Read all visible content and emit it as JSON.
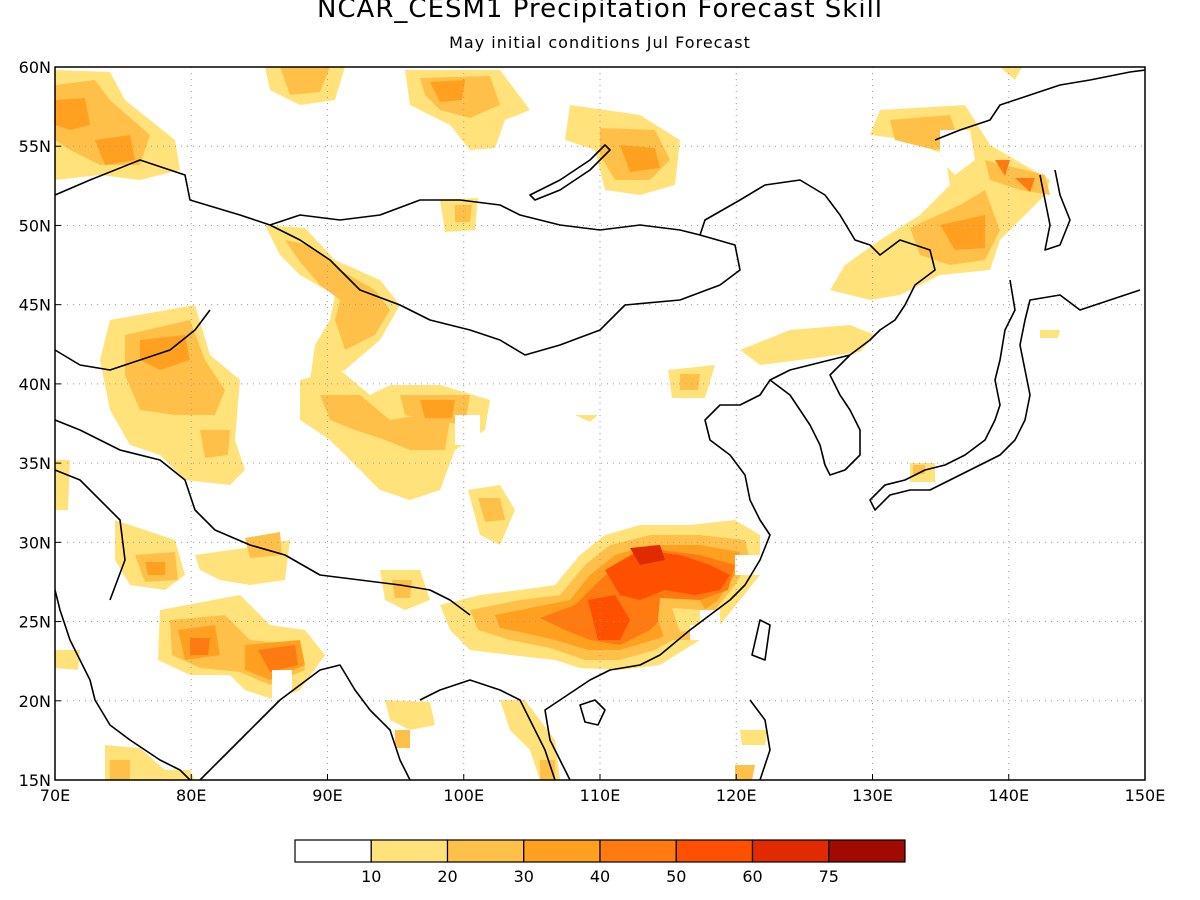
{
  "title": "NCAR_CESM1 Precipitation Forecast Skill",
  "subtitle": "May initial conditions  Jul Forecast",
  "lon_ticks": [
    "70E",
    "80E",
    "90E",
    "100E",
    "110E",
    "120E",
    "130E",
    "140E",
    "150E"
  ],
  "lat_ticks": [
    "60N",
    "55N",
    "50N",
    "45N",
    "40N",
    "35N",
    "30N",
    "25N",
    "20N",
    "15N"
  ],
  "colorbar": {
    "labels": [
      "10",
      "20",
      "30",
      "40",
      "50",
      "60",
      "75"
    ],
    "colors": [
      "#ffffff",
      "#ffe37a",
      "#ffc04a",
      "#ffa020",
      "#ff7a10",
      "#ff5000",
      "#e22a00",
      "#a00a00"
    ]
  },
  "map_extent": {
    "lon_min": 70,
    "lon_max": 150,
    "lat_min": 15,
    "lat_max": 60
  },
  "colors": {
    "frame": "#000000",
    "grid": "#999999",
    "coast": "#000000"
  }
}
